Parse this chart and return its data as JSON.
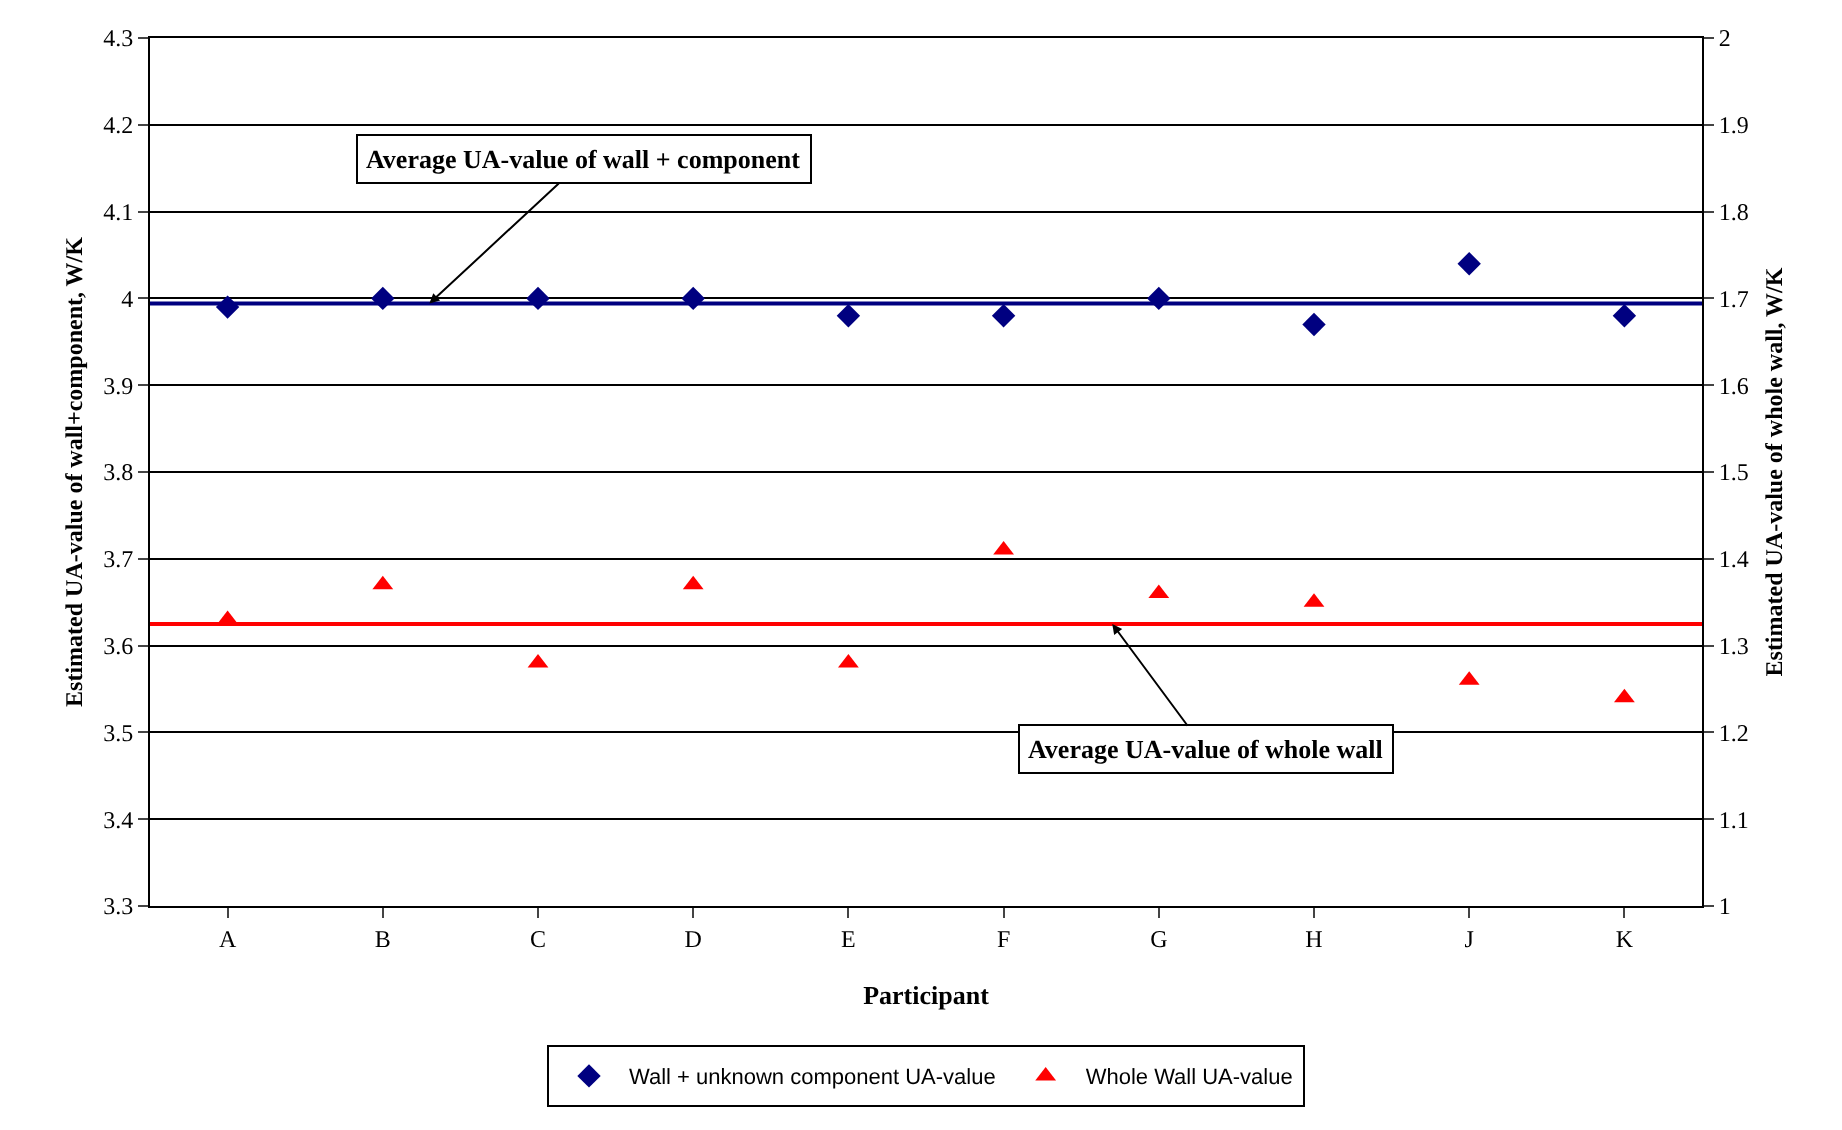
{
  "chart_data": {
    "type": "scatter",
    "xlabel": "Participant",
    "ylabel": "Estimated UA-value of wall+component, W/K",
    "y2label": "Estimated UA-value of whole wall, W/K",
    "categories": [
      "A",
      "B",
      "C",
      "D",
      "E",
      "F",
      "G",
      "H",
      "J",
      "K"
    ],
    "series": [
      {
        "name": "Wall + unknown component UA-value",
        "color": "#000080",
        "marker": "diamond",
        "values": [
          3.99,
          4.0,
          4.0,
          4.0,
          3.98,
          3.98,
          4.0,
          3.97,
          4.04,
          3.98
        ]
      },
      {
        "name": "Whole Wall UA-value",
        "color": "#ff0000",
        "marker": "triangle",
        "axis": "y2",
        "values": [
          1.33,
          1.37,
          1.28,
          1.37,
          1.28,
          1.41,
          1.36,
          1.35,
          1.26,
          1.24
        ]
      }
    ],
    "ylim": [
      3.3,
      4.3
    ],
    "yticks": [
      3.3,
      3.4,
      3.5,
      3.6,
      3.7,
      3.8,
      3.9,
      {
        "value": 4.0,
        "label": "4"
      },
      4.1,
      4.2,
      4.3
    ],
    "y2lim": [
      1,
      2
    ],
    "y2ticks": [
      1,
      1.1,
      1.2,
      1.3,
      1.4,
      1.5,
      1.6,
      1.7,
      1.8,
      1.9,
      2
    ],
    "ref_lines": [
      {
        "axis": "y",
        "value": 3.994,
        "label": "Average UA-value of wall + component",
        "color": "#000080"
      },
      {
        "axis": "y2",
        "value": 1.325,
        "label": "Average UA-value of whole wall",
        "color": "#ff0000"
      }
    ],
    "grid": "y",
    "legend": "bottom"
  }
}
